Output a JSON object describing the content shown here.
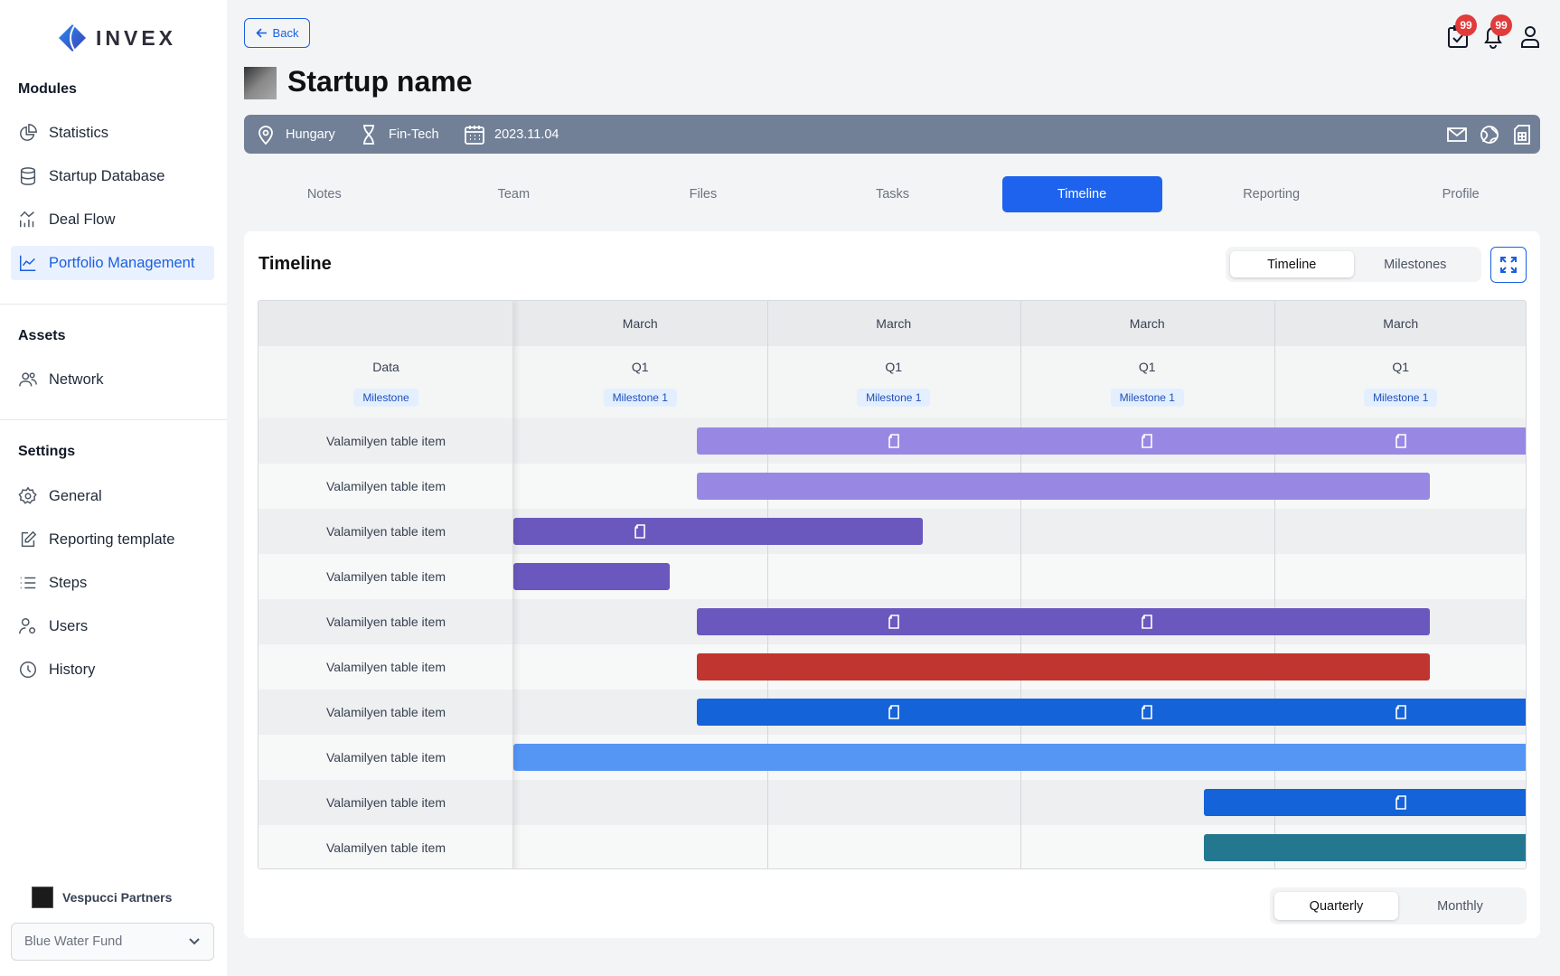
{
  "sidebar": {
    "brand": "INVEX",
    "modules_heading": "Modules",
    "modules": [
      {
        "label": "Statistics",
        "icon": "pie-chart-icon"
      },
      {
        "label": "Startup Database",
        "icon": "database-icon"
      },
      {
        "label": "Deal Flow",
        "icon": "bar-chart-icon"
      },
      {
        "label": "Portfolio Management",
        "icon": "line-chart-icon",
        "active": true
      }
    ],
    "assets_heading": "Assets",
    "assets": [
      {
        "label": "Network",
        "icon": "users-icon"
      }
    ],
    "settings_heading": "Settings",
    "settings": [
      {
        "label": "General",
        "icon": "gear-icon"
      },
      {
        "label": "Reporting template",
        "icon": "edit-icon"
      },
      {
        "label": "Steps",
        "icon": "list-icon"
      },
      {
        "label": "Users",
        "icon": "user-cog-icon"
      },
      {
        "label": "History",
        "icon": "clock-icon"
      }
    ],
    "org_name": "Vespucci Partners",
    "fund_select": "Blue Water Fund"
  },
  "header": {
    "back_label": "Back",
    "title": "Startup name",
    "task_badge": "99",
    "notification_badge": "99"
  },
  "banner": {
    "country": "Hungary",
    "industry": "Fin-Tech",
    "date": "2023.11.04"
  },
  "tabs": [
    "Notes",
    "Team",
    "Files",
    "Tasks",
    "Timeline",
    "Reporting",
    "Profile"
  ],
  "active_tab": "Timeline",
  "card": {
    "title": "Timeline",
    "view_toggle": [
      "Timeline",
      "Milestones"
    ],
    "active_view": "Timeline",
    "period_toggle": [
      "Quarterly",
      "Monthly"
    ],
    "active_period": "Quarterly"
  },
  "chart_data": {
    "type": "gantt",
    "row_header": "Data",
    "row_header_tag": "Milestone",
    "columns": [
      {
        "month": "March",
        "quarter": "Q1",
        "milestone": "Milestone 1"
      },
      {
        "month": "March",
        "quarter": "Q1",
        "milestone": "Milestone 1"
      },
      {
        "month": "March",
        "quarter": "Q1",
        "milestone": "Milestone 1"
      },
      {
        "month": "March",
        "quarter": "Q1",
        "milestone": "Milestone 1"
      }
    ],
    "colors": {
      "light_purple": "#9888e3",
      "purple": "#6b58be",
      "red": "#c0352f",
      "blue": "#1463d8",
      "light_blue": "#5596f5",
      "teal": "#23788f"
    },
    "rows": [
      {
        "label": "Valamilyen table item",
        "start": 0.725,
        "end": 4,
        "color": "light_purple",
        "doc_icons": [
          1,
          2,
          3
        ]
      },
      {
        "label": "Valamilyen table item",
        "start": 0.725,
        "end": 3.616,
        "color": "light_purple",
        "doc_icons": []
      },
      {
        "label": "Valamilyen table item",
        "start": 0,
        "end": 1.616,
        "color": "purple",
        "doc_icons": [
          0
        ]
      },
      {
        "label": "Valamilyen table item",
        "start": 0,
        "end": 0.616,
        "color": "purple",
        "doc_icons": []
      },
      {
        "label": "Valamilyen table item",
        "start": 0.725,
        "end": 3.616,
        "color": "purple",
        "doc_icons": [
          1,
          2
        ]
      },
      {
        "label": "Valamilyen table item",
        "start": 0.725,
        "end": 3.616,
        "color": "red",
        "doc_icons": []
      },
      {
        "label": "Valamilyen table item",
        "start": 0.725,
        "end": 4,
        "color": "blue",
        "doc_icons": [
          1,
          2,
          3
        ]
      },
      {
        "label": "Valamilyen table item",
        "start": 0,
        "end": 4,
        "color": "light_blue",
        "doc_icons": []
      },
      {
        "label": "Valamilyen table item",
        "start": 2.725,
        "end": 4,
        "color": "blue",
        "doc_icons": [
          3
        ]
      },
      {
        "label": "Valamilyen table item",
        "start": 2.725,
        "end": 4,
        "color": "teal",
        "doc_icons": []
      }
    ]
  }
}
